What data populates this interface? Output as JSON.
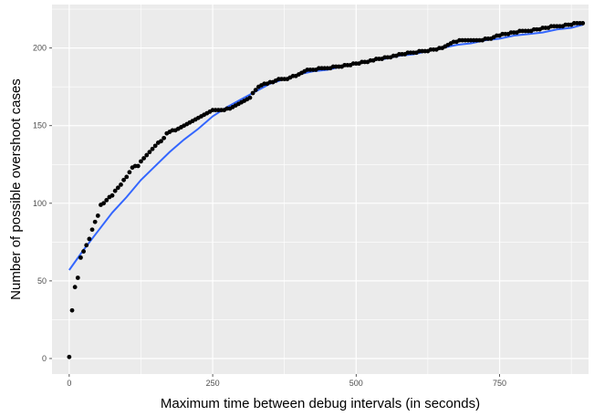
{
  "chart_data": {
    "type": "scatter",
    "xlabel": "Maximum time between debug intervals (in seconds)",
    "ylabel": "Number of possible overshoot cases",
    "xlim": [
      -30,
      905
    ],
    "ylim": [
      -10,
      228
    ],
    "x_ticks": [
      0,
      250,
      500,
      750
    ],
    "y_ticks": [
      0,
      50,
      100,
      150,
      200
    ],
    "grid": true,
    "background": "#EBEBEB",
    "grid_color": "#FFFFFF",
    "point_color": "#000000",
    "fit_color": "#3366FF",
    "series": [
      {
        "type": "scatter",
        "points": [
          [
            0,
            1
          ],
          [
            5,
            31
          ],
          [
            10,
            46
          ],
          [
            15,
            52
          ],
          [
            20,
            65
          ],
          [
            25,
            69
          ],
          [
            30,
            73
          ],
          [
            35,
            77
          ],
          [
            40,
            83
          ],
          [
            45,
            88
          ],
          [
            50,
            92
          ],
          [
            55,
            99
          ],
          [
            60,
            100
          ],
          [
            65,
            102
          ],
          [
            70,
            104
          ],
          [
            75,
            105
          ],
          [
            80,
            108
          ],
          [
            85,
            110
          ],
          [
            90,
            112
          ],
          [
            95,
            115
          ],
          [
            100,
            117
          ],
          [
            105,
            120
          ],
          [
            110,
            123
          ],
          [
            115,
            124
          ],
          [
            120,
            124
          ],
          [
            125,
            127
          ],
          [
            130,
            129
          ],
          [
            135,
            131
          ],
          [
            140,
            133
          ],
          [
            145,
            135
          ],
          [
            150,
            137
          ],
          [
            155,
            139
          ],
          [
            160,
            140
          ],
          [
            165,
            142
          ],
          [
            170,
            145
          ],
          [
            175,
            146
          ],
          [
            180,
            147
          ],
          [
            185,
            147
          ],
          [
            190,
            148
          ],
          [
            195,
            149
          ],
          [
            200,
            150
          ],
          [
            205,
            151
          ],
          [
            210,
            152
          ],
          [
            215,
            153
          ],
          [
            220,
            154
          ],
          [
            225,
            155
          ],
          [
            230,
            156
          ],
          [
            235,
            157
          ],
          [
            240,
            158
          ],
          [
            245,
            159
          ],
          [
            250,
            160
          ],
          [
            255,
            160
          ],
          [
            260,
            160
          ],
          [
            265,
            160
          ],
          [
            270,
            160
          ],
          [
            275,
            161
          ],
          [
            280,
            161
          ],
          [
            285,
            162
          ],
          [
            290,
            163
          ],
          [
            295,
            164
          ],
          [
            300,
            165
          ],
          [
            305,
            166
          ],
          [
            310,
            167
          ],
          [
            315,
            168
          ],
          [
            320,
            171
          ],
          [
            325,
            173
          ],
          [
            330,
            175
          ],
          [
            335,
            176
          ],
          [
            340,
            177
          ],
          [
            345,
            177
          ],
          [
            350,
            178
          ],
          [
            355,
            178
          ],
          [
            360,
            179
          ],
          [
            365,
            180
          ],
          [
            370,
            180
          ],
          [
            375,
            180
          ],
          [
            380,
            180
          ],
          [
            385,
            181
          ],
          [
            390,
            182
          ],
          [
            395,
            182
          ],
          [
            400,
            183
          ],
          [
            405,
            184
          ],
          [
            410,
            185
          ],
          [
            415,
            186
          ],
          [
            420,
            186
          ],
          [
            425,
            186
          ],
          [
            430,
            186
          ],
          [
            435,
            187
          ],
          [
            440,
            187
          ],
          [
            445,
            187
          ],
          [
            450,
            187
          ],
          [
            455,
            187
          ],
          [
            460,
            188
          ],
          [
            465,
            188
          ],
          [
            470,
            188
          ],
          [
            475,
            188
          ],
          [
            480,
            189
          ],
          [
            485,
            189
          ],
          [
            490,
            189
          ],
          [
            495,
            190
          ],
          [
            500,
            190
          ],
          [
            505,
            190
          ],
          [
            510,
            191
          ],
          [
            515,
            191
          ],
          [
            520,
            191
          ],
          [
            525,
            192
          ],
          [
            530,
            192
          ],
          [
            535,
            193
          ],
          [
            540,
            193
          ],
          [
            545,
            193
          ],
          [
            550,
            194
          ],
          [
            555,
            194
          ],
          [
            560,
            194
          ],
          [
            565,
            195
          ],
          [
            570,
            195
          ],
          [
            575,
            196
          ],
          [
            580,
            196
          ],
          [
            585,
            196
          ],
          [
            590,
            197
          ],
          [
            595,
            197
          ],
          [
            600,
            197
          ],
          [
            605,
            197
          ],
          [
            610,
            198
          ],
          [
            615,
            198
          ],
          [
            620,
            198
          ],
          [
            625,
            198
          ],
          [
            630,
            199
          ],
          [
            635,
            199
          ],
          [
            640,
            199
          ],
          [
            645,
            200
          ],
          [
            650,
            200
          ],
          [
            655,
            201
          ],
          [
            660,
            202
          ],
          [
            665,
            203
          ],
          [
            670,
            204
          ],
          [
            675,
            204
          ],
          [
            680,
            205
          ],
          [
            685,
            205
          ],
          [
            690,
            205
          ],
          [
            695,
            205
          ],
          [
            700,
            205
          ],
          [
            705,
            205
          ],
          [
            710,
            205
          ],
          [
            715,
            205
          ],
          [
            720,
            205
          ],
          [
            725,
            206
          ],
          [
            730,
            206
          ],
          [
            735,
            206
          ],
          [
            740,
            207
          ],
          [
            745,
            208
          ],
          [
            750,
            208
          ],
          [
            755,
            209
          ],
          [
            760,
            209
          ],
          [
            765,
            209
          ],
          [
            770,
            210
          ],
          [
            775,
            210
          ],
          [
            780,
            210
          ],
          [
            785,
            211
          ],
          [
            790,
            211
          ],
          [
            795,
            211
          ],
          [
            800,
            211
          ],
          [
            805,
            211
          ],
          [
            810,
            212
          ],
          [
            815,
            212
          ],
          [
            820,
            212
          ],
          [
            825,
            213
          ],
          [
            830,
            213
          ],
          [
            835,
            213
          ],
          [
            840,
            214
          ],
          [
            845,
            214
          ],
          [
            850,
            214
          ],
          [
            855,
            214
          ],
          [
            860,
            214
          ],
          [
            865,
            215
          ],
          [
            870,
            215
          ],
          [
            875,
            215
          ],
          [
            880,
            216
          ],
          [
            885,
            216
          ],
          [
            890,
            216
          ],
          [
            895,
            216
          ]
        ]
      },
      {
        "type": "line",
        "points": [
          [
            0,
            57
          ],
          [
            25,
            70
          ],
          [
            50,
            82
          ],
          [
            75,
            94
          ],
          [
            100,
            104
          ],
          [
            125,
            115
          ],
          [
            150,
            124
          ],
          [
            175,
            133
          ],
          [
            200,
            141
          ],
          [
            225,
            148
          ],
          [
            250,
            156
          ],
          [
            275,
            162
          ],
          [
            300,
            167
          ],
          [
            325,
            172
          ],
          [
            350,
            177
          ],
          [
            375,
            180
          ],
          [
            400,
            183
          ],
          [
            425,
            185
          ],
          [
            450,
            186
          ],
          [
            475,
            188
          ],
          [
            500,
            190
          ],
          [
            525,
            192
          ],
          [
            550,
            193
          ],
          [
            575,
            195
          ],
          [
            600,
            196
          ],
          [
            625,
            198
          ],
          [
            650,
            200
          ],
          [
            675,
            202
          ],
          [
            700,
            203
          ],
          [
            725,
            205
          ],
          [
            750,
            206
          ],
          [
            775,
            208
          ],
          [
            800,
            209
          ],
          [
            825,
            210
          ],
          [
            850,
            212
          ],
          [
            875,
            213
          ],
          [
            895,
            215
          ]
        ]
      }
    ]
  }
}
